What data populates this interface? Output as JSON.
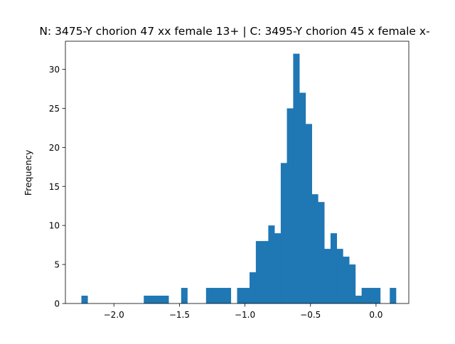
{
  "chart_data": {
    "type": "bar",
    "title": "N: 3475-Y chorion 47 xx female 13+ | C: 3495-Y chorion 45 x female x-",
    "xlabel": "",
    "ylabel": "Frequency",
    "xlim": [
      -2.37,
      0.25
    ],
    "ylim": [
      0,
      33.6
    ],
    "grid": false,
    "bar_color": "#1f77b4",
    "bin_width": 0.0475,
    "x_ticks": [
      {
        "value": -2.0,
        "label": "−2.0"
      },
      {
        "value": -1.5,
        "label": "−1.5"
      },
      {
        "value": -1.0,
        "label": "−1.0"
      },
      {
        "value": -0.5,
        "label": "−0.5"
      },
      {
        "value": 0.0,
        "label": "0.0"
      }
    ],
    "y_ticks": [
      {
        "value": 0,
        "label": "0"
      },
      {
        "value": 5,
        "label": "5"
      },
      {
        "value": 10,
        "label": "10"
      },
      {
        "value": 15,
        "label": "15"
      },
      {
        "value": 20,
        "label": "20"
      },
      {
        "value": 25,
        "label": "25"
      },
      {
        "value": 30,
        "label": "30"
      }
    ],
    "bins": [
      {
        "x": -2.248,
        "count": 1
      },
      {
        "x": -1.772,
        "count": 1
      },
      {
        "x": -1.725,
        "count": 1
      },
      {
        "x": -1.677,
        "count": 1
      },
      {
        "x": -1.63,
        "count": 1
      },
      {
        "x": -1.487,
        "count": 2
      },
      {
        "x": -1.297,
        "count": 2
      },
      {
        "x": -1.25,
        "count": 2
      },
      {
        "x": -1.202,
        "count": 2
      },
      {
        "x": -1.155,
        "count": 2
      },
      {
        "x": -1.06,
        "count": 2
      },
      {
        "x": -1.012,
        "count": 2
      },
      {
        "x": -0.965,
        "count": 4
      },
      {
        "x": -0.917,
        "count": 8
      },
      {
        "x": -0.87,
        "count": 8
      },
      {
        "x": -0.822,
        "count": 10
      },
      {
        "x": -0.775,
        "count": 9
      },
      {
        "x": -0.727,
        "count": 18
      },
      {
        "x": -0.68,
        "count": 25
      },
      {
        "x": -0.632,
        "count": 32
      },
      {
        "x": -0.585,
        "count": 27
      },
      {
        "x": -0.537,
        "count": 23
      },
      {
        "x": -0.49,
        "count": 14
      },
      {
        "x": -0.442,
        "count": 13
      },
      {
        "x": -0.395,
        "count": 7
      },
      {
        "x": -0.347,
        "count": 9
      },
      {
        "x": -0.3,
        "count": 7
      },
      {
        "x": -0.252,
        "count": 6
      },
      {
        "x": -0.205,
        "count": 5
      },
      {
        "x": -0.157,
        "count": 1
      },
      {
        "x": -0.11,
        "count": 2
      },
      {
        "x": -0.062,
        "count": 2
      },
      {
        "x": -0.015,
        "count": 2
      },
      {
        "x": 0.105,
        "count": 2
      }
    ]
  }
}
